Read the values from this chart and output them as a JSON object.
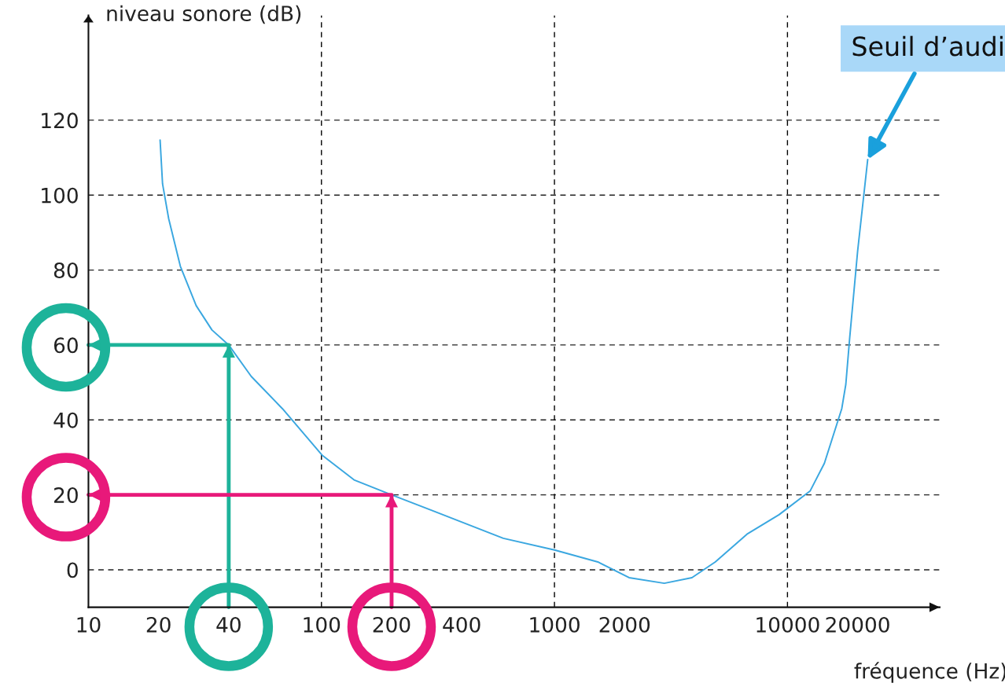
{
  "chart_data": {
    "type": "line",
    "xlabel": "fréquence (Hz)",
    "ylabel": "niveau sonore (dB)",
    "log": "x",
    "xlim": [
      10,
      45000
    ],
    "xticks": [
      10,
      20,
      40,
      100,
      200,
      400,
      1000,
      2000,
      10000,
      20000
    ],
    "ylim": [
      -10,
      148
    ],
    "yticks": [
      0,
      20,
      40,
      60,
      80,
      100,
      120
    ],
    "grid": "y",
    "marker": "none",
    "line_style": "solid",
    "ref_lines": [
      {
        "axis": "x",
        "value": 100,
        "color": "#000000",
        "line_style": "dashed"
      },
      {
        "axis": "x",
        "value": 1000,
        "color": "#000000",
        "line_style": "dashed"
      },
      {
        "axis": "x",
        "value": 10000,
        "color": "#000000",
        "line_style": "dashed"
      }
    ],
    "series": [
      {
        "color": "#3aa7e0",
        "x": [
          20.3,
          20.8,
          22.1,
          24.8,
          29,
          33.9,
          40,
          50,
          68,
          101,
          138,
          200,
          299,
          603,
          1000,
          1535,
          2090,
          2960,
          3890,
          4900,
          6700,
          9200,
          12500,
          14400,
          17100,
          17800,
          18500,
          20000,
          22100
        ],
        "values": [
          114.7,
          103,
          93.7,
          81,
          70.5,
          64,
          60,
          51.6,
          43,
          30.5,
          24,
          20,
          15.8,
          8.4,
          5.3,
          2.1,
          -2.1,
          -3.6,
          -2.1,
          2.1,
          9.5,
          14.7,
          21,
          28.4,
          43,
          49.5,
          62,
          85,
          109.5
        ]
      },
      {
        "color": "#1db39a",
        "x": [
          40,
          40,
          10
        ],
        "values": [
          -10,
          60,
          60
        ]
      },
      {
        "color": "#e8197a",
        "x": [
          200,
          200,
          10
        ],
        "values": [
          -10,
          20,
          20
        ]
      }
    ],
    "annotations": [
      {
        "text": "Seuil d’audi",
        "x": 22100,
        "y": 109.5
      }
    ]
  }
}
